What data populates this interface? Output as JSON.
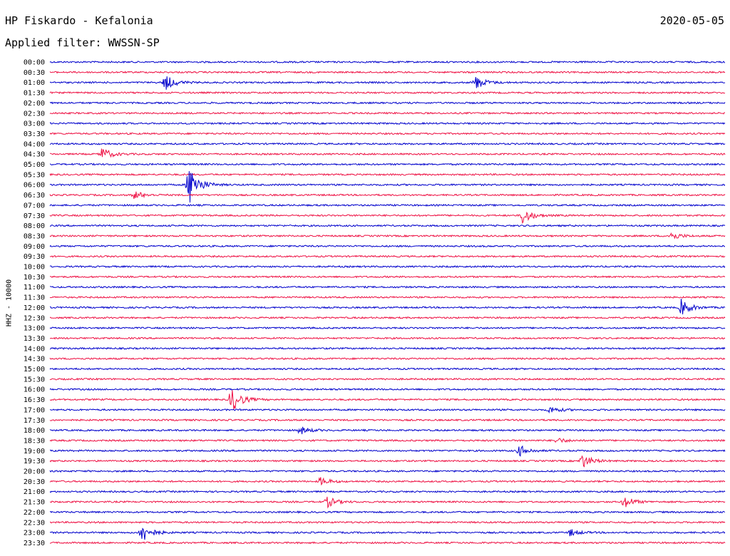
{
  "header": {
    "title": "HP Fiskardo - Kefalonia",
    "date": "2020-05-05",
    "filter": "Applied filter: WWSSN-SP",
    "channel": "HHZ - 10000"
  },
  "chart_data": {
    "type": "helicorder",
    "title": "HP Fiskardo - Kefalonia",
    "ylabel": "HHZ - 10000",
    "row_labels": [
      "00:00",
      "00:30",
      "01:00",
      "01:30",
      "02:00",
      "02:30",
      "03:00",
      "03:30",
      "04:00",
      "04:30",
      "05:00",
      "05:30",
      "06:00",
      "06:30",
      "07:00",
      "07:30",
      "08:00",
      "08:30",
      "09:00",
      "09:30",
      "10:00",
      "10:30",
      "11:00",
      "11:30",
      "12:00",
      "12:30",
      "13:00",
      "13:30",
      "14:00",
      "14:30",
      "15:00",
      "15:30",
      "16:00",
      "16:30",
      "17:00",
      "17:30",
      "18:00",
      "18:30",
      "19:00",
      "19:30",
      "20:00",
      "20:30",
      "21:00",
      "21:30",
      "22:00",
      "22:30",
      "23:00",
      "23:30"
    ],
    "colors": [
      "#0000cc",
      "#ee1144"
    ],
    "events": [
      {
        "row": "01:00",
        "pos": 0.17,
        "amp": 12
      },
      {
        "row": "01:00",
        "pos": 0.63,
        "amp": 10
      },
      {
        "row": "04:30",
        "pos": 0.076,
        "amp": 10
      },
      {
        "row": "06:00",
        "pos": 0.205,
        "amp": 32
      },
      {
        "row": "06:30",
        "pos": 0.125,
        "amp": 6
      },
      {
        "row": "07:30",
        "pos": 0.7,
        "amp": 12
      },
      {
        "row": "08:30",
        "pos": 0.92,
        "amp": 6
      },
      {
        "row": "12:00",
        "pos": 0.935,
        "amp": 12
      },
      {
        "row": "16:30",
        "pos": 0.268,
        "amp": 20
      },
      {
        "row": "17:00",
        "pos": 0.74,
        "amp": 5
      },
      {
        "row": "18:00",
        "pos": 0.37,
        "amp": 6
      },
      {
        "row": "18:30",
        "pos": 0.75,
        "amp": 4
      },
      {
        "row": "19:00",
        "pos": 0.695,
        "amp": 8
      },
      {
        "row": "19:30",
        "pos": 0.787,
        "amp": 11
      },
      {
        "row": "20:30",
        "pos": 0.4,
        "amp": 6
      },
      {
        "row": "21:30",
        "pos": 0.41,
        "amp": 8
      },
      {
        "row": "21:30",
        "pos": 0.85,
        "amp": 9
      },
      {
        "row": "23:00",
        "pos": 0.135,
        "amp": 16
      },
      {
        "row": "23:00",
        "pos": 0.77,
        "amp": 5
      }
    ]
  }
}
